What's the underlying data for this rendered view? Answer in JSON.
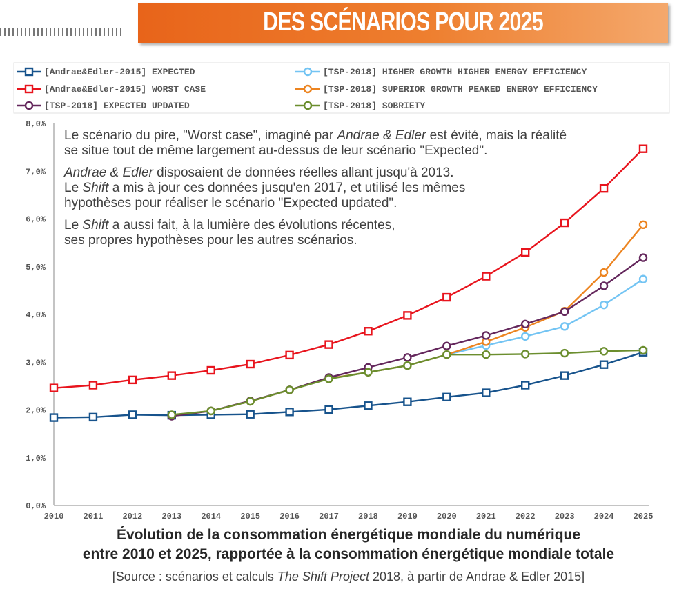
{
  "header": {
    "title": "DES SCÉNARIOS POUR 2025"
  },
  "annotation": {
    "p1": "Le scénario du pire, \"Worst case\", imaginé par Andrae & Edler est évité, mais la réalité se situe tout de même largement au-dessus de leur scénario \"Expected\".",
    "p2": "Andrae & Edler disposaient de données réelles allant jusqu'à 2013. Le Shift a mis à jour ces données jusqu'en 2017, et utilisé les mêmes hypothèses pour réaliser le scénario \"Expected updated\".",
    "p3": "Le Shift a aussi fait, à la lumière des évolutions récentes, ses propres hypothèses pour les autres scénarios."
  },
  "caption": {
    "line1": "Évolution de la consommation énergétique mondiale du numérique",
    "line2": "entre 2010 et 2025, rapportée à la consommation énergétique mondiale totale"
  },
  "source": {
    "prefix": "[Source : scénarios et calculs ",
    "italic": "The Shift Project",
    "suffix": " 2018, à partir de Andrae & Edler 2015]"
  },
  "chart_data": {
    "type": "line",
    "title": "DES SCÉNARIOS POUR 2025",
    "xlabel": "",
    "ylabel": "",
    "x": [
      "2010",
      "2011",
      "2012",
      "2013",
      "2014",
      "2015",
      "2016",
      "2017",
      "2018",
      "2019",
      "2020",
      "2021",
      "2022",
      "2023",
      "2024",
      "2025"
    ],
    "ylim": [
      0,
      8
    ],
    "yticks": [
      "0,0%",
      "1,0%",
      "2,0%",
      "3,0%",
      "4,0%",
      "5,0%",
      "6,0%",
      "7,0%",
      "8,0%"
    ],
    "grid": false,
    "legend_position": "top",
    "series": [
      {
        "name": "[Andrae&Edler-2015] EXPECTED",
        "color": "#17538c",
        "marker": "square",
        "values": [
          1.84,
          1.85,
          1.9,
          1.89,
          1.9,
          1.91,
          1.96,
          2.01,
          2.09,
          2.17,
          2.27,
          2.36,
          2.52,
          2.72,
          2.95,
          3.21
        ]
      },
      {
        "name": "[Andrae&Edler-2015] WORST CASE",
        "color": "#e8141d",
        "marker": "square",
        "values": [
          2.46,
          2.52,
          2.63,
          2.72,
          2.83,
          2.96,
          3.15,
          3.37,
          3.65,
          3.98,
          4.36,
          4.8,
          5.3,
          5.92,
          6.64,
          7.47
        ]
      },
      {
        "name": "[TSP-2018] EXPECTED UPDATED",
        "color": "#64275c",
        "marker": "circle",
        "values": [
          null,
          null,
          null,
          1.87,
          1.98,
          2.19,
          2.42,
          2.68,
          2.89,
          3.1,
          3.34,
          3.56,
          3.8,
          4.06,
          4.6,
          5.19
        ]
      },
      {
        "name": "[TSP-2018] HIGHER GROWTH HIGHER ENERGY EFFICIENCY",
        "color": "#73c4f3",
        "marker": "circle",
        "values": [
          null,
          null,
          null,
          1.89,
          1.98,
          2.18,
          2.42,
          2.66,
          2.79,
          2.93,
          3.16,
          3.35,
          3.54,
          3.75,
          4.2,
          4.74
        ]
      },
      {
        "name": "[TSP-2018] SUPERIOR GROWTH PEAKED ENERGY EFFICIENCY",
        "color": "#ec8420",
        "marker": "circle",
        "values": [
          null,
          null,
          null,
          1.89,
          1.98,
          2.18,
          2.42,
          2.66,
          2.79,
          2.93,
          3.16,
          3.43,
          3.73,
          4.07,
          4.88,
          5.88
        ]
      },
      {
        "name": "[TSP-2018] SOBRIETY",
        "color": "#6b8e2e",
        "marker": "circle",
        "values": [
          null,
          null,
          null,
          1.9,
          1.98,
          2.18,
          2.42,
          2.65,
          2.79,
          2.93,
          3.16,
          3.16,
          3.17,
          3.19,
          3.23,
          3.25
        ]
      }
    ]
  }
}
